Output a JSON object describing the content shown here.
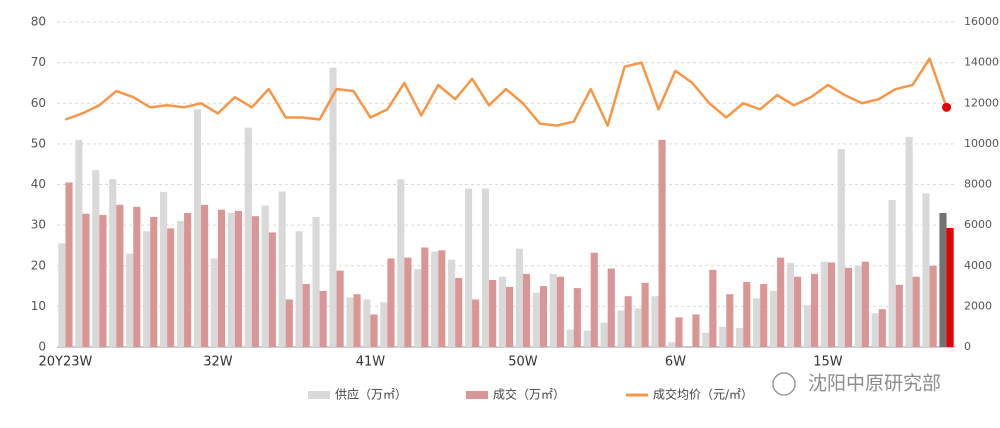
{
  "chart_data": {
    "type": "bar_line",
    "categories": [
      "20Y23W",
      null,
      null,
      null,
      null,
      null,
      null,
      null,
      null,
      "32W",
      null,
      null,
      null,
      null,
      null,
      null,
      null,
      null,
      "41W",
      null,
      null,
      null,
      null,
      null,
      null,
      null,
      null,
      "50W",
      null,
      null,
      null,
      null,
      null,
      null,
      null,
      null,
      "6W",
      null,
      null,
      null,
      null,
      null,
      null,
      null,
      null,
      "15W",
      null,
      null,
      null,
      null,
      null,
      null,
      null
    ],
    "series": [
      {
        "name": "供应（万㎡）",
        "type": "bar",
        "color": "#d9d9d9",
        "last_color": "#737373",
        "values": [
          25.5,
          51,
          43.5,
          41.3,
          23,
          28.5,
          38.2,
          31,
          58.5,
          21.8,
          33,
          54,
          34.8,
          38.3,
          28.5,
          32,
          68.8,
          12.2,
          11.7,
          11,
          41.3,
          19.2,
          23.5,
          21.5,
          39,
          39,
          17.3,
          24.2,
          13.3,
          18,
          4.3,
          4,
          6,
          9,
          9.5,
          12.5,
          1.2,
          0,
          3.5,
          5,
          4.7,
          12,
          13.8,
          20.7,
          10.3,
          21,
          48.7,
          20,
          8.3,
          36.2,
          51.7,
          37.8,
          33
        ]
      },
      {
        "name": "成交（万㎡）",
        "type": "bar",
        "color": "#d99694",
        "last_color": "#e60000",
        "values": [
          40.5,
          32.8,
          32.5,
          35,
          34.5,
          32,
          29.2,
          33,
          35,
          33.8,
          33.5,
          32.2,
          28.2,
          11.7,
          15.5,
          13.8,
          18.8,
          13,
          8,
          21.8,
          22,
          24.5,
          23.8,
          17,
          11.7,
          16.5,
          14.8,
          18,
          15,
          17.3,
          14.5,
          23.2,
          19.3,
          12.5,
          15.8,
          51,
          7.3,
          8,
          19,
          13,
          16,
          15.5,
          22,
          17.3,
          18,
          20.8,
          19.5,
          21,
          9.3,
          15.3,
          17.3,
          20,
          29.3
        ]
      },
      {
        "name": "成交均价（元/㎡）",
        "type": "line",
        "axis": "y2",
        "color": "#f79646",
        "last_color": "#e60000",
        "values": [
          11200,
          11500,
          11900,
          12600,
          12300,
          11800,
          11900,
          11800,
          12000,
          11500,
          12300,
          11800,
          12700,
          11300,
          11300,
          11200,
          12700,
          12600,
          11300,
          11700,
          13000,
          11400,
          12900,
          12200,
          13200,
          11900,
          12700,
          12000,
          11000,
          10900,
          11100,
          12700,
          10900,
          13800,
          14000,
          11700,
          13600,
          13000,
          12000,
          11300,
          12000,
          11700,
          12400,
          11900,
          12300,
          12900,
          12400,
          12000,
          12200,
          12700,
          12900,
          14200,
          11800
        ]
      }
    ],
    "ylim": [
      0,
      80
    ],
    "yticks": [
      0,
      10,
      20,
      30,
      40,
      50,
      60,
      70,
      80
    ],
    "y2lim": [
      0,
      16000
    ],
    "y2ticks": [
      0,
      2000,
      4000,
      6000,
      8000,
      10000,
      12000,
      14000,
      16000
    ],
    "grid": true,
    "legend": "bottom",
    "watermark": "沈阳中原研究部"
  }
}
